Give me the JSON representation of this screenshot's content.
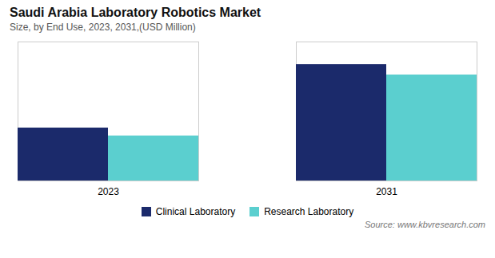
{
  "chart_data": {
    "type": "bar",
    "title": "Saudi Arabia Laboratory Robotics Market",
    "subtitle": "Size, by End Use, 2023, 2031,(USD Million)",
    "caption": "Source: www.kbvresearch.com",
    "categories": [
      "2023",
      "2031"
    ],
    "series": [
      {
        "name": "Clinical Laboratory",
        "color": "#1b2a6b",
        "values": [
          0.4,
          0.88
        ]
      },
      {
        "name": "Research Laboratory",
        "color": "#5bcfcf",
        "values": [
          0.34,
          0.8
        ]
      }
    ],
    "ylim": [
      0,
      1.05
    ],
    "tick_labels": "x",
    "legend": "bottom"
  }
}
